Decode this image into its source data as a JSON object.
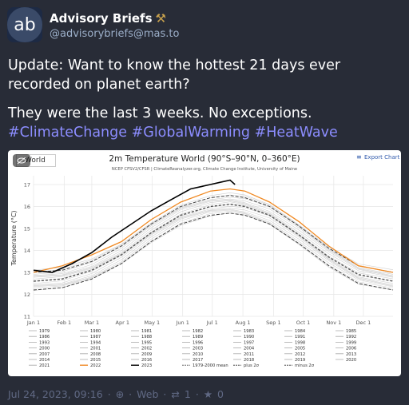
{
  "account": {
    "avatar_text": "ab",
    "display_name": "Advisory Briefs",
    "handle": "@advisorybriefs@mas.to"
  },
  "status": {
    "paragraph1": "Update: Want to know the hottest 21 days ever recorded on planet earth?",
    "paragraph2_text": "They were the last 3 weeks. No exceptions. ",
    "hashtags": [
      "#ClimateChange",
      "#GlobalWarming",
      "#HeatWave"
    ]
  },
  "media": {
    "alt_label": "World",
    "chart_title": "2m Temperature World (90°S–90°N, 0–360°E)",
    "chart_subtitle": "NCEP CFSV2/CFSR | ClimateReanalyzer.org, Climate Change Institute, University of Maine",
    "export_label": "Export Chart"
  },
  "chart_data": {
    "type": "line",
    "title": "2m Temperature World (90°S–90°N, 0–360°E)",
    "ylabel": "Temperature (°C)",
    "ylim": [
      11,
      17.4
    ],
    "y_ticks": [
      "11",
      "12",
      "13",
      "14",
      "15",
      "16",
      "17"
    ],
    "x_ticks": [
      "Jan 1",
      "Feb 1",
      "Mar 1",
      "Apr 1",
      "May 1",
      "Jun 1",
      "Jul 1",
      "Aug 1",
      "Sep 1",
      "Oct 1",
      "Nov 1",
      "Dec 1"
    ],
    "x_tick_days": [
      1,
      32,
      60,
      91,
      121,
      152,
      182,
      213,
      244,
      274,
      305,
      335
    ],
    "series": [
      {
        "name": "1979-2000 mean",
        "color": "#555555",
        "x": [
          1,
          30,
          60,
          90,
          120,
          150,
          180,
          200,
          215,
          240,
          270,
          300,
          330,
          365
        ],
        "values": [
          12.6,
          12.7,
          13.1,
          13.8,
          14.8,
          15.6,
          16.0,
          16.1,
          16.0,
          15.6,
          14.7,
          13.7,
          12.9,
          12.6
        ]
      },
      {
        "name": "plus 2σ",
        "color": "#333333",
        "x": [
          1,
          30,
          60,
          90,
          120,
          150,
          180,
          200,
          215,
          240,
          270,
          300,
          330,
          365
        ],
        "values": [
          13.0,
          13.1,
          13.5,
          14.2,
          15.2,
          16.0,
          16.4,
          16.5,
          16.4,
          16.0,
          15.1,
          14.1,
          13.3,
          13.0
        ]
      },
      {
        "name": "minus 2σ",
        "color": "#333333",
        "x": [
          1,
          30,
          60,
          90,
          120,
          150,
          180,
          200,
          215,
          240,
          270,
          300,
          330,
          365
        ],
        "values": [
          12.2,
          12.3,
          12.7,
          13.4,
          14.4,
          15.2,
          15.6,
          15.7,
          15.6,
          15.2,
          14.3,
          13.3,
          12.5,
          12.2
        ]
      },
      {
        "name": "2022",
        "color": "#f08a24",
        "x": [
          1,
          30,
          60,
          90,
          120,
          150,
          180,
          200,
          215,
          240,
          270,
          300,
          330,
          365
        ],
        "values": [
          13.0,
          13.3,
          13.8,
          14.4,
          15.4,
          16.2,
          16.7,
          16.8,
          16.7,
          16.2,
          15.3,
          14.2,
          13.3,
          13.0
        ]
      },
      {
        "name": "2023",
        "color": "#000000",
        "x": [
          1,
          20,
          40,
          60,
          80,
          100,
          120,
          140,
          160,
          170,
          180,
          190,
          200,
          205
        ],
        "values": [
          13.1,
          13.0,
          13.4,
          13.9,
          14.6,
          15.2,
          15.8,
          16.3,
          16.8,
          16.9,
          17.0,
          17.1,
          17.2,
          17.0
        ]
      }
    ],
    "legend": [
      {
        "label": "1979",
        "color": "#aaaaaa"
      },
      {
        "label": "1980",
        "color": "#aaaaaa"
      },
      {
        "label": "1981",
        "color": "#aaaaaa"
      },
      {
        "label": "1982",
        "color": "#aaaaaa"
      },
      {
        "label": "1983",
        "color": "#aaaaaa"
      },
      {
        "label": "1984",
        "color": "#aaaaaa"
      },
      {
        "label": "1985",
        "color": "#aaaaaa"
      },
      {
        "label": "1986",
        "color": "#aaaaaa"
      },
      {
        "label": "1987",
        "color": "#aaaaaa"
      },
      {
        "label": "1988",
        "color": "#aaaaaa"
      },
      {
        "label": "1989",
        "color": "#aaaaaa"
      },
      {
        "label": "1990",
        "color": "#aaaaaa"
      },
      {
        "label": "1991",
        "color": "#aaaaaa"
      },
      {
        "label": "1992",
        "color": "#aaaaaa"
      },
      {
        "label": "1993",
        "color": "#aaaaaa"
      },
      {
        "label": "1994",
        "color": "#aaaaaa"
      },
      {
        "label": "1995",
        "color": "#aaaaaa"
      },
      {
        "label": "1996",
        "color": "#aaaaaa"
      },
      {
        "label": "1997",
        "color": "#aaaaaa"
      },
      {
        "label": "1998",
        "color": "#aaaaaa"
      },
      {
        "label": "1999",
        "color": "#aaaaaa"
      },
      {
        "label": "2000",
        "color": "#aaaaaa"
      },
      {
        "label": "2001",
        "color": "#aaaaaa"
      },
      {
        "label": "2002",
        "color": "#aaaaaa"
      },
      {
        "label": "2003",
        "color": "#aaaaaa"
      },
      {
        "label": "2004",
        "color": "#aaaaaa"
      },
      {
        "label": "2005",
        "color": "#aaaaaa"
      },
      {
        "label": "2006",
        "color": "#aaaaaa"
      },
      {
        "label": "2007",
        "color": "#aaaaaa"
      },
      {
        "label": "2008",
        "color": "#aaaaaa"
      },
      {
        "label": "2009",
        "color": "#aaaaaa"
      },
      {
        "label": "2010",
        "color": "#aaaaaa"
      },
      {
        "label": "2011",
        "color": "#aaaaaa"
      },
      {
        "label": "2012",
        "color": "#aaaaaa"
      },
      {
        "label": "2013",
        "color": "#aaaaaa"
      },
      {
        "label": "2014",
        "color": "#aaaaaa"
      },
      {
        "label": "2015",
        "color": "#aaaaaa"
      },
      {
        "label": "2016",
        "color": "#aaaaaa"
      },
      {
        "label": "2017",
        "color": "#aaaaaa"
      },
      {
        "label": "2018",
        "color": "#aaaaaa"
      },
      {
        "label": "2019",
        "color": "#aaaaaa"
      },
      {
        "label": "2020",
        "color": "#aaaaaa"
      },
      {
        "label": "2021",
        "color": "#aaaaaa"
      },
      {
        "label": "2022",
        "color": "#f08a24"
      },
      {
        "label": "2023",
        "color": "#000000"
      },
      {
        "label": "1979-2000 mean",
        "color": "#555555"
      },
      {
        "label": "plus 2σ",
        "color": "#333333"
      },
      {
        "label": "minus 2σ",
        "color": "#333333"
      }
    ]
  },
  "footer": {
    "timestamp": "Jul 24, 2023, 09:16",
    "separator": "·",
    "application": "Web",
    "reblog_count": "1",
    "favourite_count": "0"
  },
  "colors": {
    "background": "#282c37",
    "hashtag": "#8c8dff",
    "muted": "#606984"
  }
}
